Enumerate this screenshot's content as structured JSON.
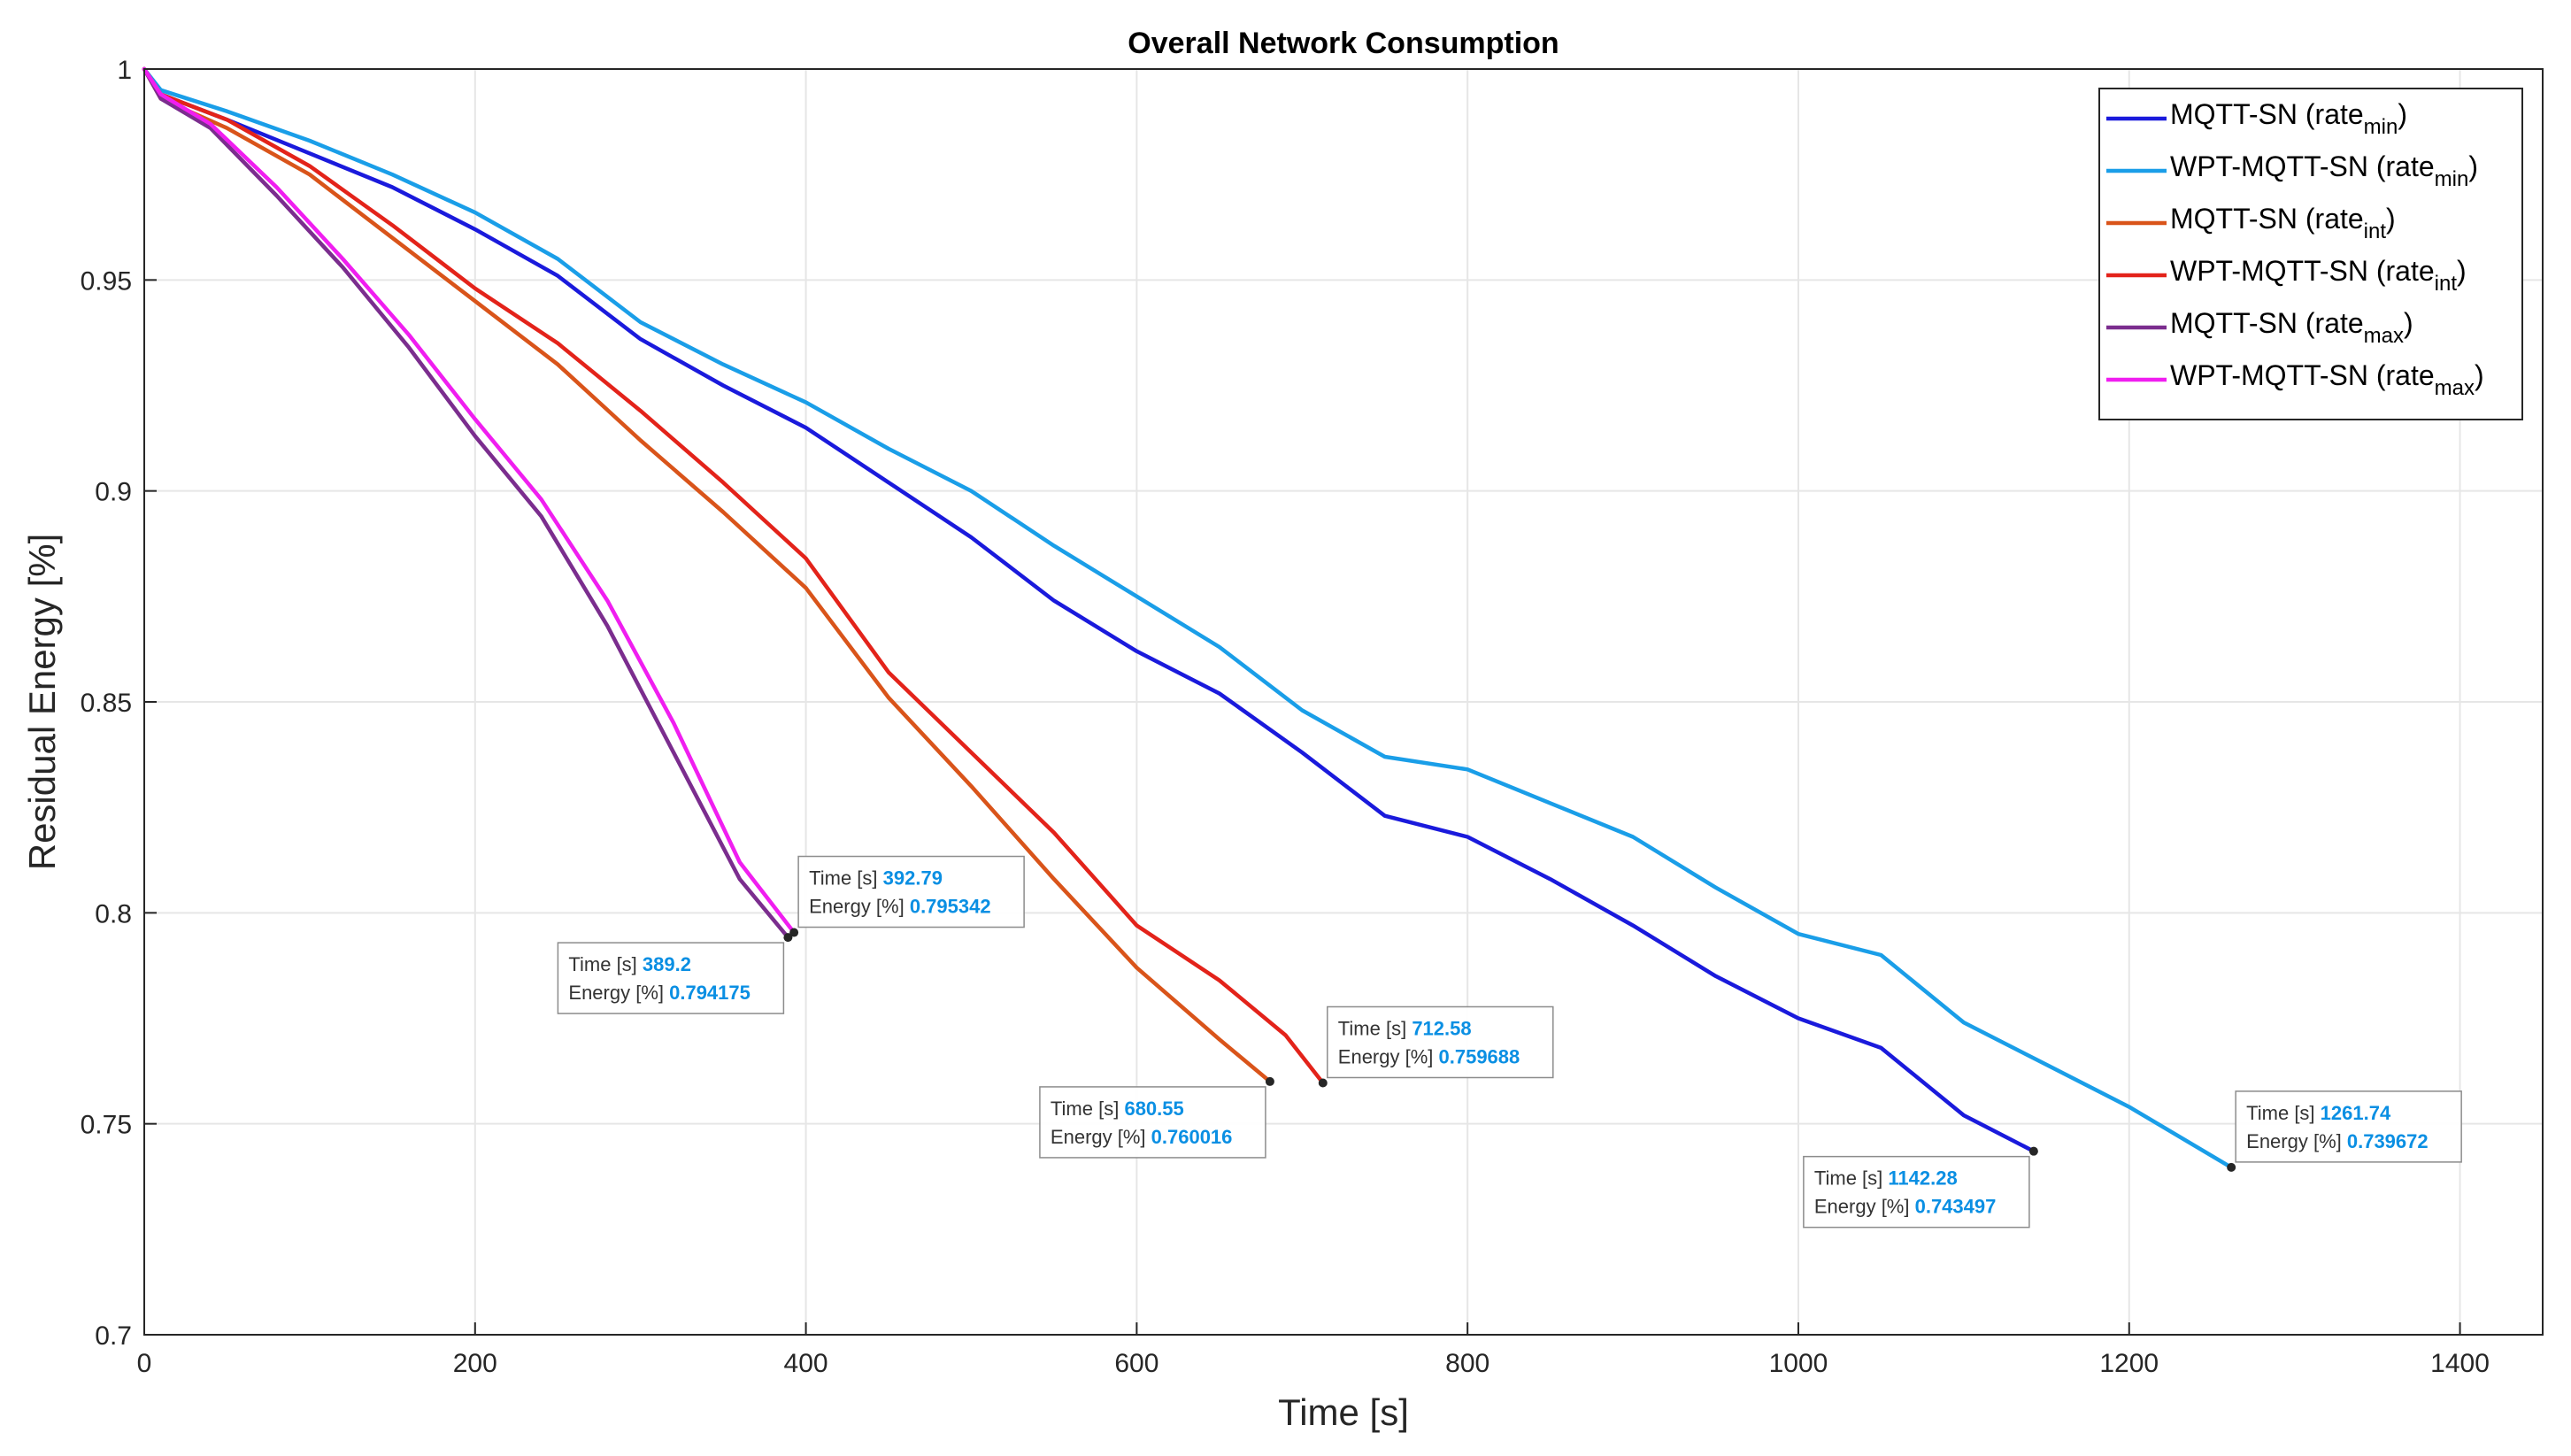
{
  "chart_data": {
    "type": "line",
    "title": "Overall Network Consumption",
    "xlabel": "Time [s]",
    "ylabel": "Residual Energy [%]",
    "xlim": [
      0,
      1450
    ],
    "ylim": [
      0.7,
      1.0
    ],
    "xticks": [
      0,
      200,
      400,
      600,
      800,
      1000,
      1200,
      1400
    ],
    "yticks": [
      0.7,
      0.75,
      0.8,
      0.85,
      0.9,
      0.95,
      1
    ],
    "xtick_labels": [
      "0",
      "200",
      "400",
      "600",
      "800",
      "1000",
      "1200",
      "1400"
    ],
    "ytick_labels": [
      "0.7",
      "0.75",
      "0.8",
      "0.85",
      "0.9",
      "0.95",
      "1"
    ],
    "grid": true,
    "legend_position": "top-right",
    "series": [
      {
        "name": "MQTT-SN (rate_min)",
        "legend_main": "MQTT-SN (rate",
        "legend_sub": "min",
        "legend_close": ")",
        "color": "#1a1adc",
        "x": [
          0,
          10,
          50,
          100,
          150,
          200,
          250,
          300,
          350,
          400,
          450,
          500,
          550,
          600,
          650,
          700,
          750,
          800,
          850,
          900,
          950,
          1000,
          1050,
          1100,
          1142.28
        ],
        "y": [
          1.0,
          0.994,
          0.988,
          0.98,
          0.972,
          0.962,
          0.951,
          0.936,
          0.925,
          0.915,
          0.902,
          0.889,
          0.874,
          0.862,
          0.852,
          0.838,
          0.823,
          0.818,
          0.808,
          0.797,
          0.785,
          0.775,
          0.768,
          0.752,
          0.743497
        ]
      },
      {
        "name": "WPT-MQTT-SN (rate_min)",
        "legend_main": "WPT-MQTT-SN (rate",
        "legend_sub": "min",
        "legend_close": ")",
        "color": "#1a9ee8",
        "x": [
          0,
          10,
          50,
          100,
          150,
          200,
          250,
          300,
          350,
          400,
          450,
          500,
          550,
          600,
          650,
          700,
          750,
          800,
          850,
          900,
          950,
          1000,
          1050,
          1100,
          1150,
          1200,
          1261.74
        ],
        "y": [
          1.0,
          0.995,
          0.99,
          0.983,
          0.975,
          0.966,
          0.955,
          0.94,
          0.93,
          0.921,
          0.91,
          0.9,
          0.887,
          0.875,
          0.863,
          0.848,
          0.837,
          0.834,
          0.826,
          0.818,
          0.806,
          0.795,
          0.79,
          0.774,
          0.764,
          0.754,
          0.739672
        ]
      },
      {
        "name": "MQTT-SN (rate_int)",
        "legend_main": "MQTT-SN (rate",
        "legend_sub": "int",
        "legend_close": ")",
        "color": "#d9541a",
        "x": [
          0,
          10,
          50,
          100,
          150,
          200,
          250,
          300,
          350,
          400,
          450,
          500,
          550,
          600,
          650,
          680.55
        ],
        "y": [
          1.0,
          0.993,
          0.986,
          0.975,
          0.96,
          0.945,
          0.93,
          0.912,
          0.895,
          0.877,
          0.851,
          0.83,
          0.808,
          0.787,
          0.77,
          0.760016
        ]
      },
      {
        "name": "WPT-MQTT-SN (rate_int)",
        "legend_main": "WPT-MQTT-SN (rate",
        "legend_sub": "int",
        "legend_close": ")",
        "color": "#e3231a",
        "x": [
          0,
          10,
          50,
          100,
          150,
          200,
          250,
          300,
          350,
          400,
          450,
          500,
          550,
          600,
          650,
          690,
          712.58
        ],
        "y": [
          1.0,
          0.994,
          0.988,
          0.977,
          0.963,
          0.948,
          0.935,
          0.919,
          0.902,
          0.884,
          0.857,
          0.838,
          0.819,
          0.797,
          0.784,
          0.771,
          0.759688
        ]
      },
      {
        "name": "MQTT-SN (rate_max)",
        "legend_main": "MQTT-SN (rate",
        "legend_sub": "max",
        "legend_close": ")",
        "color": "#7b2d8e",
        "x": [
          0,
          10,
          40,
          80,
          120,
          160,
          200,
          240,
          280,
          320,
          360,
          389.2
        ],
        "y": [
          1.0,
          0.993,
          0.986,
          0.97,
          0.953,
          0.934,
          0.913,
          0.894,
          0.868,
          0.838,
          0.808,
          0.794175
        ]
      },
      {
        "name": "WPT-MQTT-SN (rate_max)",
        "legend_main": "WPT-MQTT-SN (rate",
        "legend_sub": "max",
        "legend_close": ")",
        "color": "#f01ef0",
        "x": [
          0,
          10,
          40,
          80,
          120,
          160,
          200,
          240,
          280,
          320,
          360,
          392.79
        ],
        "y": [
          1.0,
          0.994,
          0.987,
          0.972,
          0.955,
          0.937,
          0.917,
          0.898,
          0.874,
          0.845,
          0.812,
          0.795342
        ]
      }
    ],
    "annotations": [
      {
        "time_label": "Time [s]",
        "time_value": "389.2",
        "energy_label": "Energy [%]",
        "energy_value": "0.794175",
        "x": 389.2,
        "y": 0.794175,
        "placement": "below-left"
      },
      {
        "time_label": "Time [s]",
        "time_value": "392.79",
        "energy_label": "Energy [%]",
        "energy_value": "0.795342",
        "x": 392.79,
        "y": 0.795342,
        "placement": "above-right"
      },
      {
        "time_label": "Time [s]",
        "time_value": "680.55",
        "energy_label": "Energy [%]",
        "energy_value": "0.760016",
        "x": 680.55,
        "y": 0.760016,
        "placement": "below-left"
      },
      {
        "time_label": "Time [s]",
        "time_value": "712.58",
        "energy_label": "Energy [%]",
        "energy_value": "0.759688",
        "x": 712.58,
        "y": 0.759688,
        "placement": "above-right"
      },
      {
        "time_label": "Time [s]",
        "time_value": "1142.28",
        "energy_label": "Energy [%]",
        "energy_value": "0.743497",
        "x": 1142.28,
        "y": 0.743497,
        "placement": "below-left"
      },
      {
        "time_label": "Time [s]",
        "time_value": "1261.74",
        "energy_label": "Energy [%]",
        "energy_value": "0.739672",
        "x": 1261.74,
        "y": 0.739672,
        "placement": "above-right"
      }
    ]
  }
}
